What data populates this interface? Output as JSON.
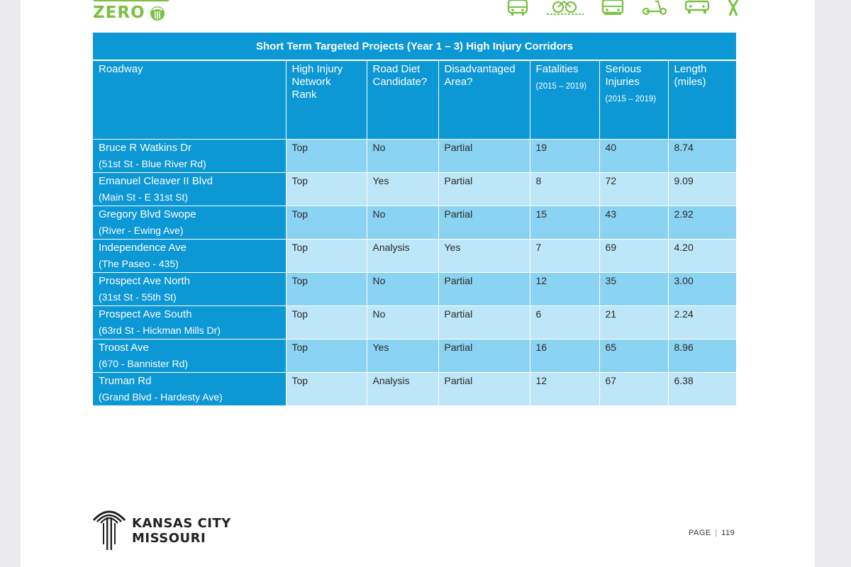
{
  "header": {
    "brand_text": "ZERO",
    "icons": [
      "bus-icon",
      "bicycle-icon",
      "tram-icon",
      "scooter-icon",
      "car-icon",
      "pedestrian-icon"
    ],
    "accent_color": "#7ac143"
  },
  "table": {
    "title": "Short Term Targeted Projects (Year 1 – 3) High Injury Corridors",
    "columns": {
      "roadway": [
        "Roadway"
      ],
      "rank": [
        "High Injury",
        "Network",
        "Rank"
      ],
      "diet": [
        "Road Diet",
        "Candidate?"
      ],
      "disadv": [
        "Disadvantaged",
        "Area?"
      ],
      "fatal": "Fatalities",
      "fatal_sub": "(2015 – 2019)",
      "serious": [
        "Serious",
        "Injuries"
      ],
      "serious_sub": "(2015 – 2019)",
      "length": [
        "Length",
        "(miles)"
      ]
    },
    "rows": [
      {
        "name": "Bruce R Watkins Dr",
        "segment": "(51st St - Blue River Rd)",
        "rank": "Top",
        "diet": "No",
        "disadv": "Partial",
        "fatal": "19",
        "serious": "40",
        "length": "8.74"
      },
      {
        "name": "Emanuel Cleaver II Blvd",
        "segment": "(Main St - E 31st St)",
        "rank": "Top",
        "diet": "Yes",
        "disadv": "Partial",
        "fatal": "8",
        "serious": "72",
        "length": "9.09"
      },
      {
        "name": "Gregory Blvd Swope",
        "segment": "(River - Ewing Ave)",
        "rank": "Top",
        "diet": "No",
        "disadv": "Partial",
        "fatal": "15",
        "serious": "43",
        "length": "2.92"
      },
      {
        "name": "Independence Ave",
        "segment": "(The Paseo - 435)",
        "rank": "Top",
        "diet": "Analysis",
        "disadv": "Yes",
        "fatal": "7",
        "serious": "69",
        "length": "4.20"
      },
      {
        "name": "Prospect Ave North",
        "segment": "(31st St - 55th St)",
        "rank": "Top",
        "diet": "No",
        "disadv": "Partial",
        "fatal": "12",
        "serious": "35",
        "length": "3.00"
      },
      {
        "name": "Prospect Ave South",
        "segment": "(63rd St - Hickman Mills Dr)",
        "rank": "Top",
        "diet": "No",
        "disadv": "Partial",
        "fatal": "6",
        "serious": "21",
        "length": "2.24"
      },
      {
        "name": "Troost Ave",
        "segment": "(670 - Bannister Rd)",
        "rank": "Top",
        "diet": "Yes",
        "disadv": "Partial",
        "fatal": "16",
        "serious": "65",
        "length": "8.96"
      },
      {
        "name": "Truman Rd",
        "segment": "(Grand Blvd - Hardesty Ave)",
        "rank": "Top",
        "diet": "Analysis",
        "disadv": "Partial",
        "fatal": "12",
        "serious": "67",
        "length": "6.38"
      }
    ],
    "colors": {
      "header": "#0c97d5",
      "row_dark": "#8ad3f2",
      "row_light": "#bde6f8"
    }
  },
  "footer": {
    "org_line1": "KANSAS CITY",
    "org_line2": "MISSOURI",
    "page_label": "PAGE",
    "page_sep": "|",
    "page_number": "119"
  }
}
